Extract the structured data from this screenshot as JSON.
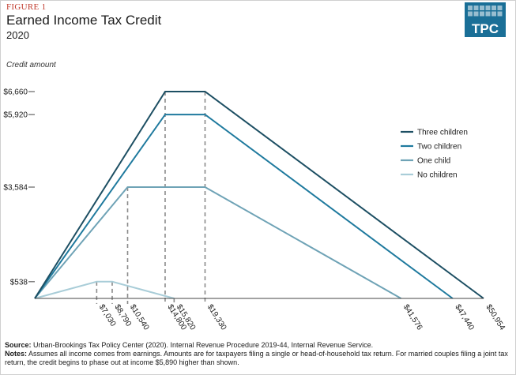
{
  "header": {
    "figure_label": "FIGURE 1",
    "title": "Earned Income Tax Credit",
    "subtitle": "2020",
    "logo_text": "TPC"
  },
  "colors": {
    "three_children": "#1d4f63",
    "two_children": "#1f7a9e",
    "one_child": "#6fa3b6",
    "no_children": "#a9cdd8",
    "guide": "#8a8a8a",
    "logo_bg": "#1a6f97"
  },
  "chart_data": {
    "type": "line",
    "title": "Earned Income Tax Credit",
    "subtitle": "2020",
    "ylabel": "Credit amount",
    "xlabel": "",
    "xlim": [
      0,
      50954
    ],
    "ylim": [
      0,
      6660
    ],
    "y_ticks": [
      {
        "value": 538,
        "label": "$538"
      },
      {
        "value": 3584,
        "label": "$3,584"
      },
      {
        "value": 5920,
        "label": "$5,920"
      },
      {
        "value": 6660,
        "label": "$6,660"
      }
    ],
    "x_ticks": [
      {
        "value": 7030,
        "label": "$7,030"
      },
      {
        "value": 8790,
        "label": "$8,790"
      },
      {
        "value": 10540,
        "label": "$10,540"
      },
      {
        "value": 14800,
        "label": "$14,800"
      },
      {
        "value": 15820,
        "label": "$15,820"
      },
      {
        "value": 19330,
        "label": "$19,330"
      },
      {
        "value": 41576,
        "label": "$41,576"
      },
      {
        "value": 47440,
        "label": "$47,440"
      },
      {
        "value": 50954,
        "label": "$50,954"
      }
    ],
    "series": [
      {
        "name": "Three children",
        "key": "three_children",
        "points": [
          [
            0,
            0
          ],
          [
            14800,
            6660
          ],
          [
            19330,
            6660
          ],
          [
            50954,
            0
          ]
        ]
      },
      {
        "name": "Two children",
        "key": "two_children",
        "points": [
          [
            0,
            0
          ],
          [
            14800,
            5920
          ],
          [
            19330,
            5920
          ],
          [
            47440,
            0
          ]
        ]
      },
      {
        "name": "One child",
        "key": "one_child",
        "points": [
          [
            0,
            0
          ],
          [
            10540,
            3584
          ],
          [
            19330,
            3584
          ],
          [
            41576,
            0
          ]
        ]
      },
      {
        "name": "No children",
        "key": "no_children",
        "points": [
          [
            0,
            0
          ],
          [
            7030,
            538
          ],
          [
            8790,
            538
          ],
          [
            15820,
            0
          ]
        ]
      }
    ],
    "guides": [
      {
        "x": 7030,
        "y": 538
      },
      {
        "x": 8790,
        "y": 538
      },
      {
        "x": 10540,
        "y": 3584
      },
      {
        "x": 14800,
        "y": 6660
      },
      {
        "x": 15820,
        "y": 0
      },
      {
        "x": 19330,
        "y": 6660
      }
    ],
    "legend": {
      "position": "right",
      "entries": [
        "Three children",
        "Two children",
        "One child",
        "No children"
      ]
    }
  },
  "footer": {
    "source_label": "Source:",
    "source_text": "Urban-Brookings Tax Policy Center (2020). Internal Revenue Procedure 2019-44, Internal Revenue Service.",
    "notes_label": "Notes:",
    "notes_text": "Assumes all income comes from earnings. Amounts are for taxpayers filing a single or head-of-household tax return. For married couples filing a joint tax return, the credit begins to phase out at income $5,890 higher than shown."
  }
}
